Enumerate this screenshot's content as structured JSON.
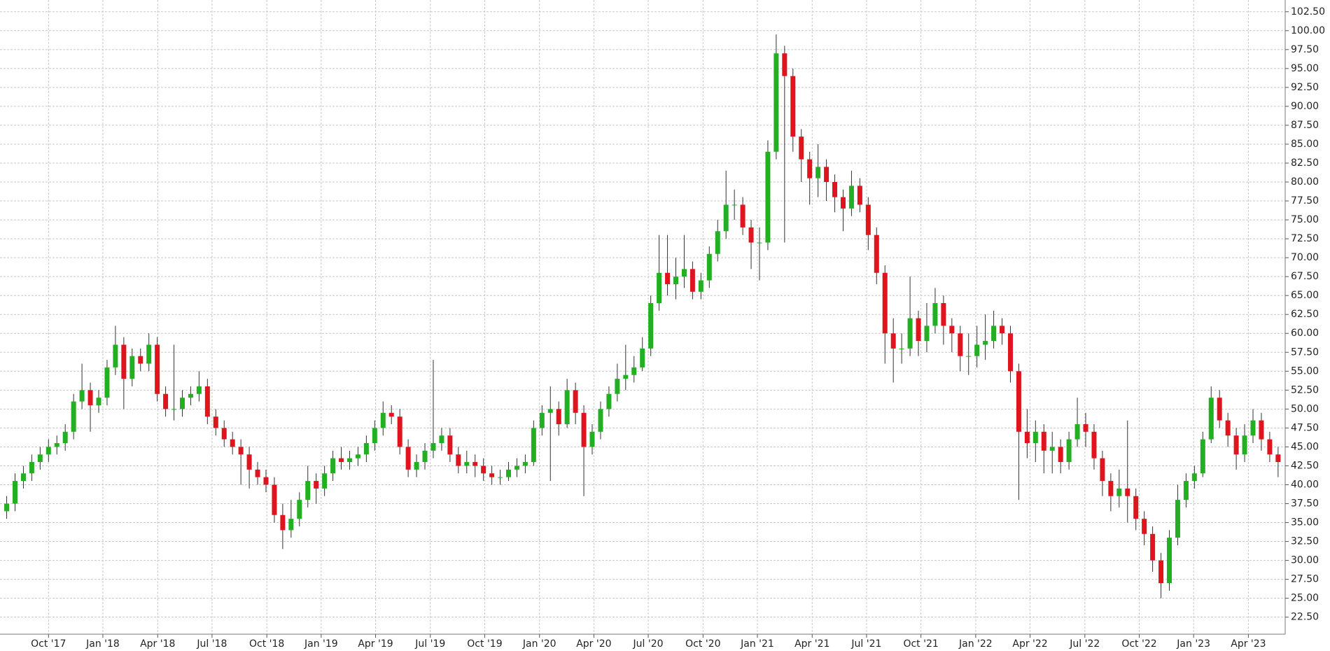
{
  "chart_data": {
    "type": "candlestick",
    "x": [
      -10,
      -8,
      -6,
      -4,
      -2,
      0,
      2,
      4,
      6,
      8,
      10,
      12,
      14,
      16,
      18,
      20,
      22,
      24,
      26,
      28,
      30,
      32,
      34,
      36,
      38,
      40,
      42,
      44,
      46,
      48,
      50,
      52,
      54,
      56,
      58,
      60,
      62,
      64,
      66,
      68,
      70,
      72,
      74,
      76,
      78,
      80,
      82,
      84,
      86,
      88,
      90,
      92,
      94,
      96,
      98,
      100,
      102,
      104,
      106,
      108,
      110,
      112,
      114,
      116,
      118,
      120,
      122,
      124,
      126,
      128,
      130,
      132,
      134,
      136,
      138,
      140,
      142,
      144,
      146,
      148,
      150,
      152,
      154,
      156,
      158,
      160,
      162,
      164,
      166,
      168,
      170,
      172,
      174,
      176,
      178,
      180,
      182,
      184,
      186,
      188,
      190,
      192,
      194,
      196,
      198,
      200,
      202,
      204,
      206,
      208,
      210,
      212,
      214,
      216,
      218,
      220,
      222,
      224,
      226,
      228,
      230,
      232,
      234,
      236,
      238,
      240,
      242,
      244,
      246,
      248,
      250,
      252,
      254,
      256,
      258,
      260,
      262,
      264,
      266,
      268,
      270,
      272,
      274,
      276,
      278,
      280,
      282,
      284,
      286,
      288,
      290,
      292,
      294
    ],
    "open": [
      36.5,
      37.5,
      40.5,
      41.5,
      43,
      44,
      45,
      45.5,
      47,
      51,
      52.5,
      50.5,
      51.5,
      55.5,
      58.5,
      54,
      57,
      56,
      58.5,
      52,
      50,
      50,
      51.5,
      52,
      53,
      49,
      47.5,
      46,
      45,
      44,
      42,
      41,
      40,
      36,
      34,
      35.5,
      38,
      40.5,
      39.5,
      41.5,
      43.5,
      43,
      43.5,
      44,
      45.5,
      47.5,
      49.5,
      49,
      45,
      42,
      43,
      44.5,
      45.5,
      46.5,
      44,
      42.5,
      43,
      42.5,
      41.5,
      41,
      41,
      42,
      42.5,
      43,
      47.5,
      49.5,
      50,
      48,
      52.5,
      49.5,
      45,
      47,
      50,
      52,
      54,
      54.5,
      55.5,
      58,
      64,
      68,
      66.5,
      67.5,
      68.5,
      65.5,
      67,
      70.5,
      73.5,
      77,
      77,
      74,
      72,
      72,
      84,
      97,
      94,
      86,
      83,
      80.5,
      82,
      80,
      78,
      76.5,
      79.5,
      77,
      73,
      68,
      60,
      58,
      58,
      62,
      59,
      61,
      64,
      61,
      60,
      57,
      57,
      58.5,
      59,
      61,
      60,
      55,
      47,
      45.5,
      47,
      44.5,
      45,
      43,
      46,
      48,
      47,
      43.5,
      40.5,
      38.5,
      39.5,
      38.5,
      35.5,
      33.5,
      30,
      27,
      33,
      38,
      40.5,
      41.5,
      46,
      51.5,
      48.5,
      46.5,
      44,
      46.5,
      48.5,
      46,
      44
    ],
    "high": [
      38.5,
      41.5,
      42.5,
      44,
      45,
      46,
      46.5,
      48,
      52,
      56,
      53.5,
      52.5,
      56.5,
      61,
      59.5,
      58,
      58,
      60,
      59.5,
      53,
      58.5,
      52.5,
      53,
      55,
      54,
      50,
      48.5,
      47,
      46,
      45,
      43,
      42,
      41,
      37.5,
      38,
      39,
      42.5,
      41.5,
      42.5,
      44.5,
      45,
      44.5,
      45,
      46.5,
      48.5,
      51,
      50.5,
      50,
      46,
      44,
      45.5,
      56.5,
      47.5,
      47.5,
      45,
      44.5,
      44,
      43.5,
      42.5,
      42,
      43,
      43.5,
      44,
      48.5,
      50.5,
      53,
      51,
      54,
      53.5,
      50.5,
      48,
      51,
      53,
      56,
      58.5,
      57,
      59.5,
      65,
      73,
      73,
      70,
      73,
      69.5,
      68,
      71.5,
      75,
      81.5,
      79,
      78,
      75,
      74,
      85.5,
      99.5,
      98,
      95,
      87,
      84,
      85,
      83,
      81,
      79,
      81.5,
      80.5,
      78,
      74,
      69,
      62,
      60,
      67.5,
      63,
      64,
      66,
      65,
      62,
      61,
      60,
      61,
      62.5,
      63,
      62,
      61,
      56,
      50,
      48.5,
      48,
      47,
      46,
      47,
      51.5,
      49.5,
      48,
      44.5,
      41.5,
      42,
      48.5,
      39.5,
      36.5,
      34.5,
      31,
      34,
      40,
      41.5,
      42.5,
      47,
      53,
      52.5,
      49.5,
      47.5,
      48,
      50,
      49.5,
      47,
      45
    ],
    "low": [
      35.5,
      36.5,
      39.5,
      40.5,
      42,
      43,
      44,
      44.5,
      46,
      50,
      47,
      49.5,
      50.5,
      54.5,
      50,
      53,
      55,
      55,
      51,
      49,
      48.5,
      49,
      50.5,
      51,
      48,
      46.5,
      45,
      44,
      40,
      39.5,
      40,
      39,
      35,
      31.5,
      33,
      34.5,
      37,
      37.5,
      38.5,
      40.5,
      42,
      42,
      42.5,
      43,
      44.5,
      46.5,
      48,
      44,
      41,
      41,
      42,
      43.5,
      44.5,
      43,
      41.5,
      41.5,
      41,
      40.5,
      40,
      40,
      40.5,
      41,
      41.5,
      42.5,
      46.5,
      40.5,
      46.5,
      47.5,
      48,
      38.5,
      44,
      46,
      49,
      51,
      52.5,
      53.5,
      55,
      57,
      63,
      65,
      64.5,
      66,
      64.5,
      64.5,
      66,
      69.5,
      72.5,
      75,
      73,
      68.5,
      67,
      71,
      83,
      72,
      84,
      80,
      77,
      78,
      77.5,
      76,
      73.5,
      75.5,
      76,
      71,
      66.5,
      56,
      53.5,
      56,
      57,
      57,
      57.5,
      60,
      58.5,
      57.5,
      55,
      54.5,
      55.5,
      56.5,
      58,
      58.5,
      53.5,
      38,
      43.5,
      43,
      41.5,
      41.5,
      41.5,
      42,
      45,
      45,
      42,
      38.5,
      36.5,
      37,
      35,
      34,
      32,
      28.5,
      25,
      26,
      32,
      37,
      39.5,
      41,
      45.5,
      47.5,
      45,
      42,
      43,
      45.5,
      44.5,
      43,
      41
    ],
    "close": [
      37.5,
      40.5,
      41.5,
      43,
      44,
      45,
      45.5,
      47,
      51,
      52.5,
      50.5,
      51.5,
      55.5,
      58.5,
      54,
      57,
      56,
      58.5,
      52,
      50,
      50,
      51.5,
      52,
      53,
      49,
      47.5,
      46,
      45,
      44,
      42,
      41,
      40,
      36,
      34,
      35.5,
      38,
      40.5,
      39.5,
      41.5,
      43.5,
      43,
      43.5,
      44,
      45.5,
      47.5,
      49.5,
      49,
      45,
      42,
      43,
      44.5,
      45.5,
      46.5,
      44,
      42.5,
      43,
      42.5,
      41.5,
      41,
      41,
      42,
      42.5,
      43,
      47.5,
      49.5,
      50,
      48,
      52.5,
      49.5,
      45,
      47,
      50,
      52,
      54,
      54.5,
      55.5,
      58,
      64,
      68,
      66.5,
      67.5,
      68.5,
      65.5,
      67,
      70.5,
      73.5,
      77,
      77,
      74,
      72,
      72,
      84,
      97,
      94,
      86,
      83,
      80.5,
      82,
      80,
      78,
      76.5,
      79.5,
      77,
      73,
      68,
      60,
      58,
      58,
      62,
      59,
      61,
      64,
      61,
      60,
      57,
      57,
      58.5,
      59,
      61,
      60,
      55,
      47,
      45.5,
      47,
      44.5,
      45,
      43,
      46,
      48,
      47,
      43.5,
      40.5,
      38.5,
      39.5,
      38.5,
      35.5,
      33.5,
      30,
      27,
      33,
      38,
      40.5,
      41.5,
      46,
      51.5,
      48.5,
      46.5,
      44,
      46.5,
      48.5,
      46,
      44,
      43
    ],
    "up_color": "#22b022",
    "down_color": "#e0141e",
    "wick_color": "#333333",
    "xlim": [
      -11.6,
      295.7
    ],
    "ylim": [
      20.25,
      104.05
    ],
    "grid": true,
    "xticks": [
      {
        "value": 0,
        "label": "Oct '17"
      },
      {
        "value": 13,
        "label": "Jan '18"
      },
      {
        "value": 26.1,
        "label": "Apr '18"
      },
      {
        "value": 39.1,
        "label": "Jul '18"
      },
      {
        "value": 52.2,
        "label": "Oct '18"
      },
      {
        "value": 65.2,
        "label": "Jan '19"
      },
      {
        "value": 78.2,
        "label": "Apr '19"
      },
      {
        "value": 91.3,
        "label": "Jul '19"
      },
      {
        "value": 104.3,
        "label": "Oct '19"
      },
      {
        "value": 117.4,
        "label": "Jan '20"
      },
      {
        "value": 130.4,
        "label": "Apr '20"
      },
      {
        "value": 143.4,
        "label": "Jul '20"
      },
      {
        "value": 156.5,
        "label": "Oct '20"
      },
      {
        "value": 169.5,
        "label": "Jan '21"
      },
      {
        "value": 182.6,
        "label": "Apr '21"
      },
      {
        "value": 195.6,
        "label": "Jul '21"
      },
      {
        "value": 208.6,
        "label": "Oct '21"
      },
      {
        "value": 221.7,
        "label": "Jan '22"
      },
      {
        "value": 234.7,
        "label": "Apr '22"
      },
      {
        "value": 247.8,
        "label": "Jul '22"
      },
      {
        "value": 260.8,
        "label": "Oct '22"
      },
      {
        "value": 273.8,
        "label": "Jan '23"
      },
      {
        "value": 286.9,
        "label": "Apr '23"
      }
    ],
    "yticks": [
      {
        "value": 22.5,
        "label": "22.50"
      },
      {
        "value": 25,
        "label": "25.00"
      },
      {
        "value": 27.5,
        "label": "27.50"
      },
      {
        "value": 30,
        "label": "30.00"
      },
      {
        "value": 32.5,
        "label": "32.50"
      },
      {
        "value": 35,
        "label": "35.00"
      },
      {
        "value": 37.5,
        "label": "37.50"
      },
      {
        "value": 40,
        "label": "40.00"
      },
      {
        "value": 42.5,
        "label": "42.50"
      },
      {
        "value": 45,
        "label": "45.00"
      },
      {
        "value": 47.5,
        "label": "47.50"
      },
      {
        "value": 50,
        "label": "50.00"
      },
      {
        "value": 52.5,
        "label": "52.50"
      },
      {
        "value": 55,
        "label": "55.00"
      },
      {
        "value": 57.5,
        "label": "57.50"
      },
      {
        "value": 60,
        "label": "60.00"
      },
      {
        "value": 62.5,
        "label": "62.50"
      },
      {
        "value": 65,
        "label": "65.00"
      },
      {
        "value": 67.5,
        "label": "67.50"
      },
      {
        "value": 70,
        "label": "70.00"
      },
      {
        "value": 72.5,
        "label": "72.50"
      },
      {
        "value": 75,
        "label": "75.00"
      },
      {
        "value": 77.5,
        "label": "77.50"
      },
      {
        "value": 80,
        "label": "80.00"
      },
      {
        "value": 82.5,
        "label": "82.50"
      },
      {
        "value": 85,
        "label": "85.00"
      },
      {
        "value": 87.5,
        "label": "87.50"
      },
      {
        "value": 90,
        "label": "90.00"
      },
      {
        "value": 92.5,
        "label": "92.50"
      },
      {
        "value": 95,
        "label": "95.00"
      },
      {
        "value": 97.5,
        "label": "97.50"
      },
      {
        "value": 100,
        "label": "100.00"
      },
      {
        "value": 102.5,
        "label": "102.50"
      }
    ]
  }
}
